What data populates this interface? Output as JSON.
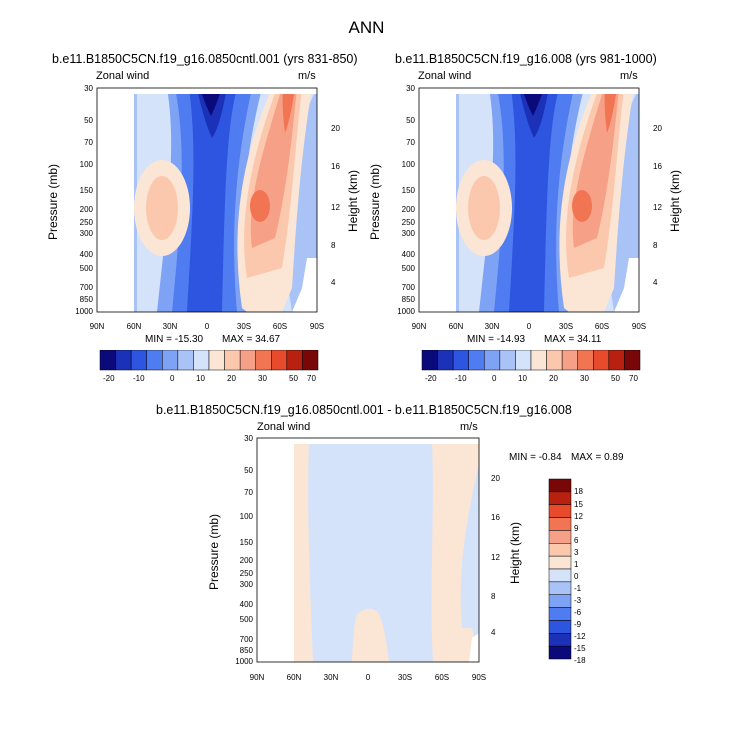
{
  "title": "ANN",
  "palette_main": [
    "#0a0a7a",
    "#1b32b8",
    "#2d55e0",
    "#4f7cf0",
    "#7fa3f4",
    "#a9c3f7",
    "#d5e3fa",
    "#fbe6d6",
    "#fbc8ae",
    "#f6a187",
    "#f27553",
    "#e84b2c",
    "#b8210f",
    "#7a0707"
  ],
  "palette_diff": [
    "#0a0a7a",
    "#1b32b8",
    "#2d55e0",
    "#4f7cf0",
    "#7fa3f4",
    "#a9c3f7",
    "#d5e3fa",
    "#fbe6d6",
    "#fbc8ae",
    "#f6a187",
    "#f27553",
    "#e84b2c",
    "#b8210f",
    "#7a0707"
  ],
  "chart_data": [
    {
      "type": "heatmap",
      "subtitle": "b.e11.B1850C5CN.f19_g16.0850cntl.001 (yrs 831-850)",
      "left_label": "Zonal wind",
      "right_label": "m/s",
      "xlabel": "",
      "ylabel": "Pressure (mb)",
      "y2label": "Height (km)",
      "x_ticks": [
        "90N",
        "60N",
        "30N",
        "0",
        "30S",
        "60S",
        "90S"
      ],
      "y_ticks": [
        "30",
        "50",
        "70",
        "100",
        "150",
        "200",
        "250",
        "300",
        "400",
        "500",
        "700",
        "850",
        "1000"
      ],
      "y2_ticks": [
        "20",
        "16",
        "12",
        "8",
        "4"
      ],
      "min_label": "MIN = -15.30",
      "max_label": "MAX = 34.67",
      "min": -15.3,
      "max": 34.67,
      "colorbar_labels": [
        "-20",
        "-10",
        "0",
        "10",
        "20",
        "30",
        "50",
        "70"
      ]
    },
    {
      "type": "heatmap",
      "subtitle": "b.e11.B1850C5CN.f19_g16.008 (yrs 981-1000)",
      "left_label": "Zonal wind",
      "right_label": "m/s",
      "xlabel": "",
      "ylabel": "Pressure (mb)",
      "y2label": "Height (km)",
      "x_ticks": [
        "90N",
        "60N",
        "30N",
        "0",
        "30S",
        "60S",
        "90S"
      ],
      "y_ticks": [
        "30",
        "50",
        "70",
        "100",
        "150",
        "200",
        "250",
        "300",
        "400",
        "500",
        "700",
        "850",
        "1000"
      ],
      "y2_ticks": [
        "20",
        "16",
        "12",
        "8",
        "4"
      ],
      "min_label": "MIN = -14.93",
      "max_label": "MAX = 34.11",
      "min": -14.93,
      "max": 34.11,
      "colorbar_labels": [
        "-20",
        "-10",
        "0",
        "10",
        "20",
        "30",
        "50",
        "70"
      ]
    },
    {
      "type": "heatmap",
      "subtitle": "b.e11.B1850C5CN.f19_g16.0850cntl.001 - b.e11.B1850C5CN.f19_g16.008",
      "left_label": "Zonal wind",
      "right_label": "m/s",
      "xlabel": "",
      "ylabel": "Pressure (mb)",
      "y2label": "Height (km)",
      "x_ticks": [
        "90N",
        "60N",
        "30N",
        "0",
        "30S",
        "60S",
        "90S"
      ],
      "y_ticks": [
        "30",
        "50",
        "70",
        "100",
        "150",
        "200",
        "250",
        "300",
        "400",
        "500",
        "700",
        "850",
        "1000"
      ],
      "y2_ticks": [
        "20",
        "16",
        "12",
        "8",
        "4"
      ],
      "min_label": "MIN =  -0.84",
      "max_label": "MAX =   0.89",
      "min": -0.84,
      "max": 0.89,
      "colorbar_labels": [
        "18",
        "15",
        "12",
        "9",
        "6",
        "3",
        "1",
        "0",
        "-1",
        "-3",
        "-6",
        "-9",
        "-12",
        "-15",
        "-18"
      ]
    }
  ]
}
